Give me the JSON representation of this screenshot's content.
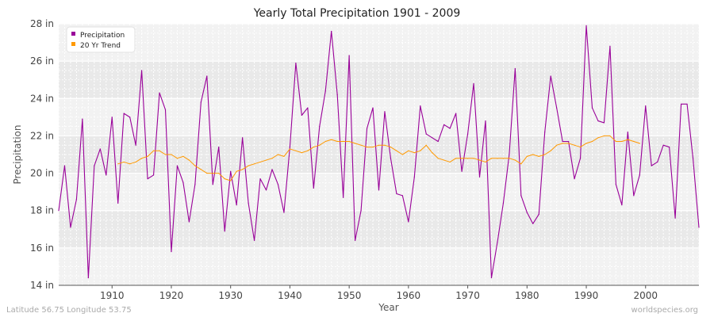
{
  "chart_data": {
    "type": "line",
    "title": "Yearly Total Precipitation 1901 - 2009",
    "xlabel": "Year",
    "ylabel": "Precipitation",
    "xlim": [
      1901,
      2009
    ],
    "ylim": [
      14,
      28
    ],
    "x_ticks": [
      1910,
      1920,
      1930,
      1940,
      1950,
      1960,
      1970,
      1980,
      1990,
      2000
    ],
    "y_ticks": [
      14,
      16,
      18,
      20,
      22,
      24,
      26,
      28
    ],
    "y_tick_labels": [
      "14 in",
      "16 in",
      "18 in",
      "20 in",
      "22 in",
      "24 in",
      "26 in",
      "28 in"
    ],
    "grid": true,
    "legend_position": "top-left",
    "series": [
      {
        "name": "Precipitation",
        "color": "#990099",
        "x_start": 1901,
        "values": [
          18.0,
          20.4,
          17.1,
          18.6,
          22.9,
          14.4,
          20.4,
          21.3,
          19.9,
          23.0,
          18.4,
          23.2,
          23.0,
          21.5,
          25.5,
          19.7,
          19.9,
          24.3,
          23.4,
          15.8,
          20.4,
          19.5,
          17.4,
          19.4,
          23.8,
          25.2,
          19.4,
          21.4,
          16.9,
          20.1,
          18.3,
          21.9,
          18.4,
          16.4,
          19.7,
          19.1,
          20.2,
          19.4,
          17.9,
          21.4,
          25.9,
          23.1,
          23.5,
          19.2,
          22.5,
          24.4,
          27.6,
          24.2,
          18.7,
          26.3,
          16.4,
          18.0,
          22.4,
          23.5,
          19.1,
          23.3,
          20.8,
          18.9,
          18.8,
          17.4,
          19.8,
          23.6,
          22.1,
          21.9,
          21.7,
          22.6,
          22.4,
          23.2,
          20.1,
          22.1,
          24.8,
          19.8,
          22.8,
          14.4,
          16.3,
          18.4,
          21.0,
          25.6,
          18.8,
          17.9,
          17.3,
          17.8,
          22.2,
          25.2,
          23.5,
          21.7,
          21.7,
          19.7,
          20.8,
          27.9,
          23.5,
          22.8,
          22.7,
          26.8,
          19.4,
          18.3,
          22.2,
          18.8,
          19.9,
          23.6,
          20.4,
          20.6,
          21.5,
          21.4,
          17.6,
          23.7,
          23.7,
          20.8,
          17.1
        ]
      },
      {
        "name": "20 Yr Trend",
        "color": "#ff9900",
        "x_start": 1911,
        "values": [
          20.5,
          20.6,
          20.5,
          20.6,
          20.8,
          20.9,
          21.2,
          21.2,
          21.0,
          21.0,
          20.8,
          20.9,
          20.7,
          20.4,
          20.2,
          20.0,
          20.0,
          20.0,
          19.7,
          19.6,
          20.1,
          20.2,
          20.4,
          20.5,
          20.6,
          20.7,
          20.8,
          21.0,
          20.9,
          21.3,
          21.2,
          21.1,
          21.2,
          21.4,
          21.5,
          21.7,
          21.8,
          21.7,
          21.7,
          21.7,
          21.6,
          21.5,
          21.4,
          21.4,
          21.5,
          21.5,
          21.4,
          21.2,
          21.0,
          21.2,
          21.1,
          21.2,
          21.5,
          21.1,
          20.8,
          20.7,
          20.6,
          20.8,
          20.8,
          20.8,
          20.8,
          20.7,
          20.6,
          20.8,
          20.8,
          20.8,
          20.8,
          20.7,
          20.5,
          20.9,
          21.0,
          20.9,
          21.0,
          21.2,
          21.5,
          21.6,
          21.6,
          21.5,
          21.4,
          21.6,
          21.7,
          21.9,
          22.0,
          22.0,
          21.7,
          21.7,
          21.8,
          21.7,
          21.6
        ]
      }
    ]
  },
  "footer": {
    "left": "Latitude 56.75 Longitude 53.75",
    "right": "worldspecies.org"
  }
}
